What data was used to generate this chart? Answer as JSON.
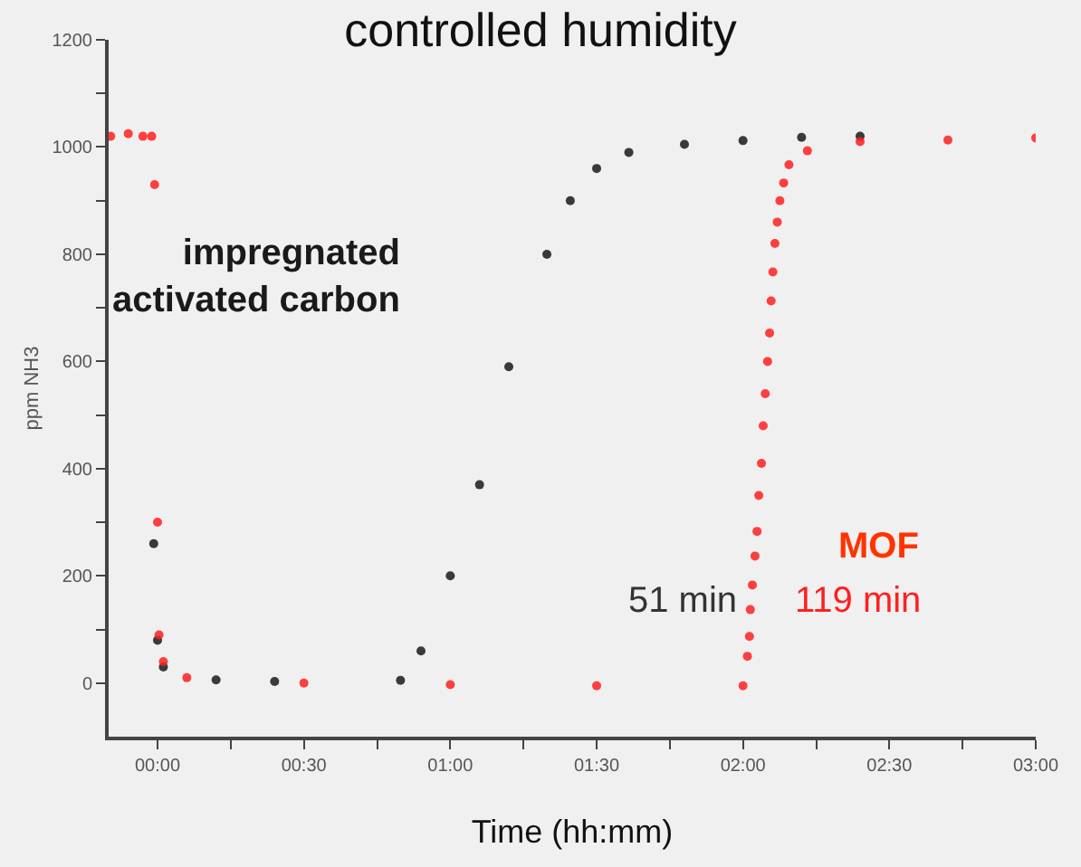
{
  "chart_data": {
    "type": "scatter",
    "title": "controlled humidity",
    "xlabel": "Time (hh:mm)",
    "ylabel": "ppm NH3",
    "xlim": [
      -0.167,
      3.0
    ],
    "xticks": [
      {
        "value": 0,
        "label": "00:00"
      },
      {
        "value": 0.25,
        "label": null
      },
      {
        "value": 0.5,
        "label": "00:30"
      },
      {
        "value": 0.75,
        "label": null
      },
      {
        "value": 1,
        "label": "01:00"
      },
      {
        "value": 1.25,
        "label": null
      },
      {
        "value": 1.5,
        "label": "01:30"
      },
      {
        "value": 1.75,
        "label": null
      },
      {
        "value": 2,
        "label": "02:00"
      },
      {
        "value": 2.25,
        "label": null
      },
      {
        "value": 2.5,
        "label": "02:30"
      },
      {
        "value": 2.75,
        "label": null
      },
      {
        "value": 3,
        "label": "03:00"
      }
    ],
    "ylim": [
      -100,
      1200
    ],
    "yticks": [
      0,
      {
        "value": 100,
        "label": null
      },
      200,
      {
        "value": 300,
        "label": null
      },
      400,
      {
        "value": 500,
        "label": null
      },
      600,
      {
        "value": 700,
        "label": null
      },
      800,
      {
        "value": 900,
        "label": null
      },
      1000,
      {
        "value": 1100,
        "label": null
      },
      1200
    ],
    "marker": "circle",
    "grid": false,
    "legend": false,
    "series": [
      {
        "name": "impregnated activated carbon",
        "color": "#1a1a1a",
        "x": [
          -0.013,
          0.0,
          0.02,
          0.2,
          0.4,
          0.83,
          0.9,
          1.0,
          1.1,
          1.2,
          1.33,
          1.41,
          1.5,
          1.61,
          1.8,
          2.0,
          2.2,
          2.4
        ],
        "values": [
          260,
          80,
          30,
          6,
          3,
          5,
          60,
          200,
          370,
          590,
          800,
          900,
          960,
          990,
          1005,
          1012,
          1018,
          1020
        ]
      },
      {
        "name": "MOF",
        "color": "#ff2020",
        "x": [
          -0.16,
          -0.1,
          -0.05,
          -0.02,
          -0.01,
          0.0,
          0.005,
          0.02,
          0.1,
          0.5,
          1.0,
          1.5,
          2.0,
          2.015,
          2.022,
          2.025,
          2.032,
          2.041,
          2.048,
          2.054,
          2.063,
          2.069,
          2.076,
          2.084,
          2.091,
          2.096,
          2.102,
          2.109,
          2.117,
          2.126,
          2.139,
          2.157,
          2.22,
          2.4,
          2.7,
          3.0
        ],
        "values": [
          1020,
          1025,
          1020,
          1020,
          930,
          300,
          90,
          40,
          10,
          0,
          -3,
          -5,
          -5,
          50,
          87,
          137,
          183,
          237,
          283,
          350,
          410,
          480,
          540,
          600,
          653,
          713,
          767,
          820,
          860,
          900,
          933,
          967,
          993,
          1010,
          1013,
          1017
        ]
      }
    ],
    "annotations": [
      "51 min",
      "119 min"
    ]
  }
}
